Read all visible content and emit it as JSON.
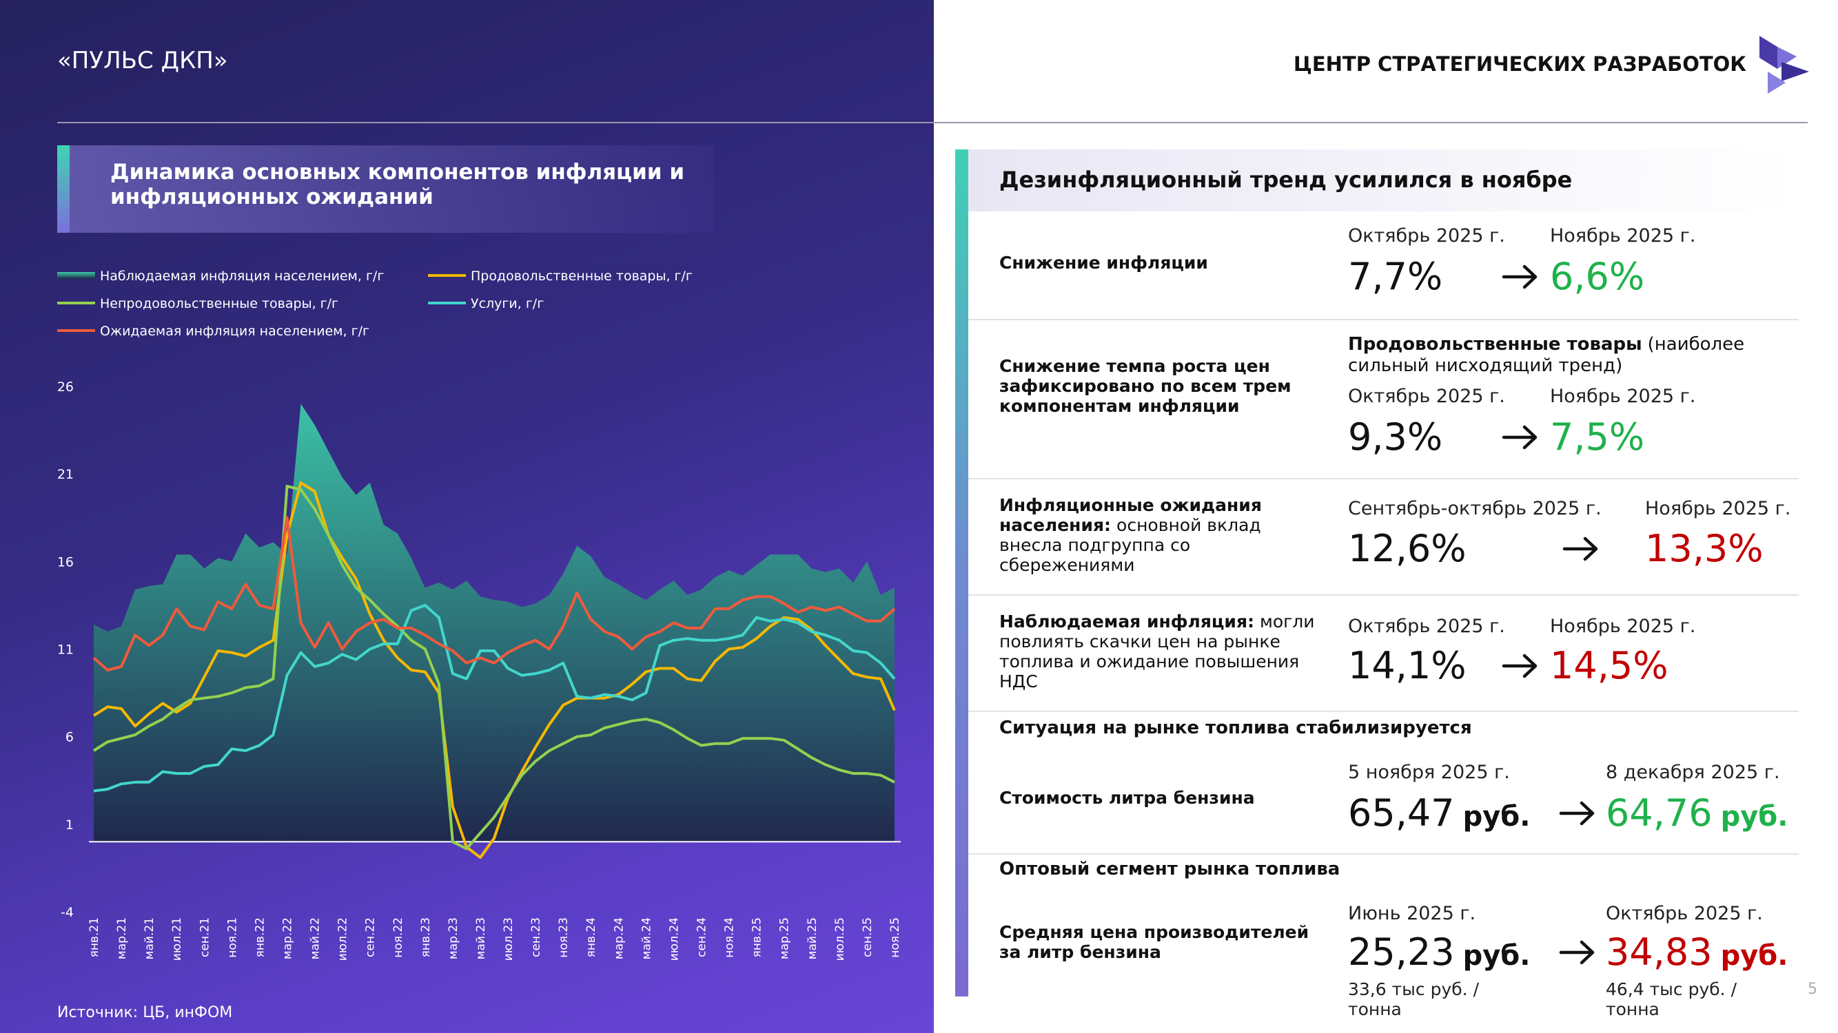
{
  "header": {
    "title": "«ПУЛЬС ДКП»",
    "org": "ЦЕНТР СТРАТЕГИЧЕСКИХ РАЗРАБОТОК"
  },
  "chart_data": {
    "type": "line",
    "title": "Динамика основных компонентов инфляции и инфляционных ожиданий",
    "categories": [
      "янв.21",
      null,
      "мар.21",
      null,
      "май.21",
      null,
      "июл.21",
      null,
      "сен.21",
      null,
      "ноя.21",
      null,
      "янв.22",
      null,
      "мар.22",
      null,
      "май.22",
      null,
      "июл.22",
      null,
      "сен.22",
      null,
      "ноя.22",
      null,
      "янв.23",
      null,
      "мар.23",
      null,
      "май.23",
      null,
      "июл.23",
      null,
      "сен.23",
      null,
      "ноя.23",
      null,
      "янв.24",
      null,
      "мар.24",
      null,
      "май.24",
      null,
      "июл.24",
      null,
      "сен.24",
      null,
      "ноя.24",
      null,
      "янв.25",
      null,
      "мар.25",
      null,
      "май.25",
      null,
      "июл.25",
      null,
      "сен.25",
      null,
      "ноя.25"
    ],
    "series": [
      {
        "name": "Наблюдаемая инфляция населением, г/г",
        "color": "#3cc9a8",
        "area": true,
        "values": [
          12.4,
          12.0,
          12.3,
          14.4,
          14.6,
          14.7,
          16.4,
          16.4,
          15.6,
          16.2,
          16.0,
          17.6,
          16.8,
          17.1,
          16.4,
          25.0,
          23.8,
          22.3,
          20.8,
          19.8,
          20.5,
          18.1,
          17.6,
          16.2,
          14.5,
          14.8,
          14.4,
          14.9,
          14.0,
          13.8,
          13.7,
          13.4,
          13.6,
          14.1,
          15.3,
          16.9,
          16.3,
          15.1,
          14.7,
          14.2,
          13.8,
          14.4,
          14.9,
          14.1,
          14.4,
          15.1,
          15.5,
          15.2,
          15.8,
          16.4,
          16.4,
          16.4,
          15.6,
          15.4,
          15.6,
          14.8,
          16.0,
          14.1,
          14.5
        ]
      },
      {
        "name": "Продовольственные товары, г/г",
        "color": "#f5b800",
        "values": [
          7.2,
          7.7,
          7.6,
          6.6,
          7.3,
          7.9,
          7.4,
          7.9,
          9.4,
          10.9,
          10.8,
          10.6,
          11.1,
          11.5,
          17.5,
          20.5,
          20.0,
          17.5,
          16.2,
          15.0,
          13.0,
          11.5,
          10.5,
          9.8,
          9.7,
          8.5,
          2.0,
          -0.3,
          -0.9,
          0.2,
          2.5,
          4.0,
          5.4,
          6.7,
          7.8,
          8.2,
          8.2,
          8.2,
          8.4,
          9.0,
          9.7,
          9.9,
          9.9,
          9.3,
          9.2,
          10.3,
          11.0,
          11.1,
          11.6,
          12.3,
          12.8,
          12.7,
          12.1,
          11.2,
          10.4,
          9.6,
          9.4,
          9.3,
          7.5
        ]
      },
      {
        "name": "Непродовольственные товары, г/г",
        "color": "#93d150",
        "values": [
          5.2,
          5.7,
          5.9,
          6.1,
          6.6,
          7.0,
          7.6,
          8.1,
          8.2,
          8.3,
          8.5,
          8.8,
          8.9,
          9.3,
          20.3,
          20.1,
          19.0,
          17.5,
          15.8,
          14.5,
          13.8,
          13.0,
          12.3,
          11.5,
          11.0,
          9.0,
          0.0,
          -0.4,
          0.5,
          1.4,
          2.6,
          3.8,
          4.6,
          5.2,
          5.6,
          6.0,
          6.1,
          6.5,
          6.7,
          6.9,
          7.0,
          6.8,
          6.4,
          5.9,
          5.5,
          5.6,
          5.6,
          5.9,
          5.9,
          5.9,
          5.8,
          5.3,
          4.8,
          4.4,
          4.1,
          3.9,
          3.9,
          3.8,
          3.4
        ]
      },
      {
        "name": "Услуги, г/г",
        "color": "#42d6cc",
        "values": [
          2.9,
          3.0,
          3.3,
          3.4,
          3.4,
          4.0,
          3.9,
          3.9,
          4.3,
          4.4,
          5.3,
          5.2,
          5.5,
          6.1,
          9.5,
          10.8,
          10.0,
          10.2,
          10.7,
          10.4,
          11.0,
          11.3,
          11.3,
          13.2,
          13.5,
          12.8,
          9.6,
          9.3,
          10.9,
          10.9,
          9.9,
          9.5,
          9.6,
          9.8,
          10.2,
          8.3,
          8.2,
          8.4,
          8.3,
          8.1,
          8.5,
          11.2,
          11.5,
          11.6,
          11.5,
          11.5,
          11.6,
          11.8,
          12.8,
          12.6,
          12.7,
          12.5,
          12.0,
          11.8,
          11.5,
          10.9,
          10.8,
          10.2,
          9.3
        ]
      },
      {
        "name": "Ожидаемая инфляция населением, г/г",
        "color": "#f05a3c",
        "values": [
          10.5,
          9.8,
          10.0,
          11.8,
          11.2,
          11.8,
          13.3,
          12.3,
          12.1,
          13.7,
          13.3,
          14.7,
          13.5,
          13.3,
          18.5,
          12.5,
          11.1,
          12.5,
          11.0,
          12.0,
          12.5,
          12.7,
          12.2,
          12.2,
          11.8,
          11.3,
          10.9,
          10.2,
          10.5,
          10.2,
          10.8,
          11.2,
          11.5,
          11.0,
          12.3,
          14.2,
          12.7,
          12.0,
          11.7,
          11.0,
          11.7,
          12.0,
          12.5,
          12.2,
          12.2,
          13.3,
          13.3,
          13.8,
          14.0,
          14.0,
          13.6,
          13.1,
          13.4,
          13.2,
          13.4,
          13.0,
          12.6,
          12.6,
          13.3
        ]
      }
    ],
    "ylim": [
      -4,
      26
    ],
    "yticks": [
      26,
      21,
      16,
      11,
      6,
      1,
      -4
    ],
    "grid": false
  },
  "source": "Источник: ЦБ, инФОМ",
  "right_panel": {
    "title": "Дезинфляционный тренд усилился в ноябре",
    "rows": [
      {
        "label_bold": "Снижение инфляции",
        "from_period": "Октябрь 2025 г.",
        "from_value": "7,7%",
        "to_period": "Ноябрь 2025 г.",
        "to_value": "6,6%",
        "to_color": "#1fb14a"
      },
      {
        "label_bold": "Снижение темпа роста цен зафиксировано по всем трем компонентам инфляции",
        "note_bold": "Продовольственные товары",
        "note_text": "(наиболее сильный нисходящий тренд)",
        "from_period": "Октябрь 2025 г.",
        "from_value": "9,3%",
        "to_period": "Ноябрь 2025 г.",
        "to_value": "7,5%",
        "to_color": "#1fb14a"
      },
      {
        "label_bold": "Инфляционные ожидания населения:",
        "label_text": "основной вклад внесла подгруппа со сбережениями",
        "from_period": "Сентябрь-октябрь 2025 г.",
        "from_value": "12,6%",
        "to_period": "Ноябрь 2025 г.",
        "to_value": "13,3%",
        "to_color": "#c00000"
      },
      {
        "label_bold": "Наблюдаемая инфляция:",
        "label_text": "могли повлиять скачки цен на рынке топлива и ожидание повышения НДС",
        "from_period": "Октябрь 2025 г.",
        "from_value": "14,1%",
        "to_period": "Ноябрь 2025 г.",
        "to_value": "14,5%",
        "to_color": "#c00000"
      },
      {
        "heading": "Ситуация на рынке топлива стабилизируется",
        "label_bold": "Стоимость литра бензина",
        "from_period": "5 ноября 2025 г.",
        "from_value": "65,47",
        "from_unit": "руб.",
        "to_period": "8 декабря 2025 г.",
        "to_value": "64,76",
        "to_unit": "руб.",
        "to_color": "#1fb14a"
      },
      {
        "heading": "Оптовый сегмент рынка топлива",
        "label_bold": "Средняя цена производителей за литр бензина",
        "from_period": "Июнь 2025 г.",
        "from_value": "25,23",
        "from_unit": "руб.",
        "from_sub": "33,6 тыс руб. / тонна",
        "to_period": "Октябрь 2025 г.",
        "to_value": "34,83",
        "to_unit": "руб.",
        "to_sub": "46,4 тыс руб. / тонна",
        "to_color": "#c00000"
      }
    ]
  },
  "page_number": "5"
}
